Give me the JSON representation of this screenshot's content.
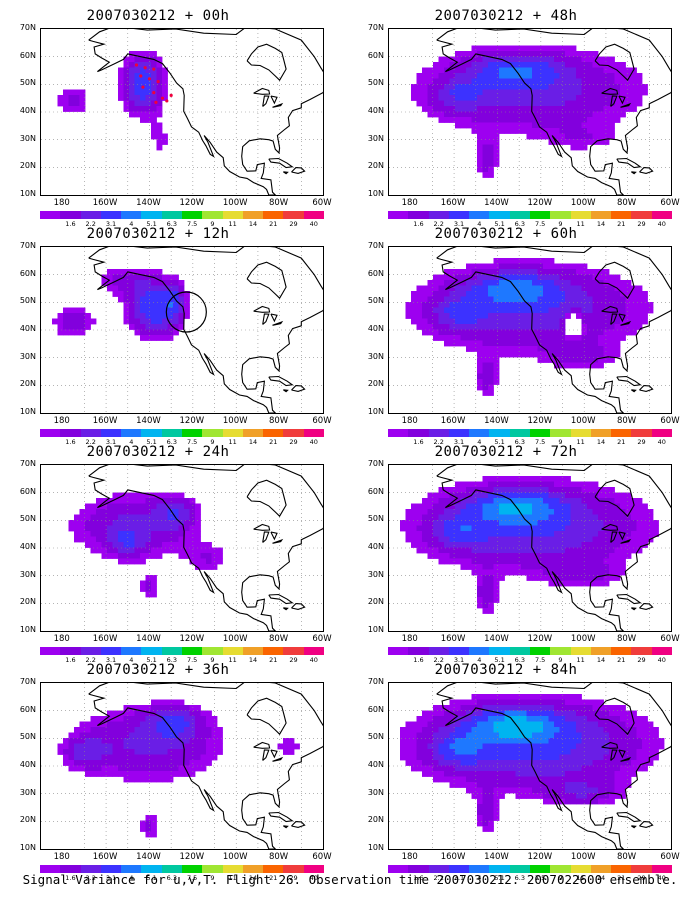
{
  "figure": {
    "caption": "Signal Variance for u,v,T. Flight 26. Observation time 2007030212. 2007022600 ensemble."
  },
  "axes": {
    "lat_labels": [
      "70N",
      "60N",
      "50N",
      "40N",
      "30N",
      "20N",
      "10N"
    ],
    "lon_labels": [
      "180",
      "160W",
      "140W",
      "120W",
      "100W",
      "80W",
      "60W"
    ]
  },
  "colorbar": {
    "labels": [
      "1.6",
      "2.2",
      "3.1",
      "4",
      "5.1",
      "6.3",
      "7.5",
      "9",
      "11",
      "14",
      "21",
      "29",
      "40"
    ],
    "colors": [
      "#9d00f0",
      "#8200dd",
      "#6a1ee6",
      "#3c32ff",
      "#1e78ff",
      "#00b4f0",
      "#00c8a0",
      "#00d200",
      "#a0e632",
      "#e6dc32",
      "#f0a028",
      "#fa6400",
      "#f03c3c",
      "#f00082"
    ]
  },
  "panels": [
    {
      "title": "2007030212 + 00h",
      "lead": 0
    },
    {
      "title": "2007030212 + 48h",
      "lead": 48
    },
    {
      "title": "2007030212 + 12h",
      "lead": 12
    },
    {
      "title": "2007030212 + 60h",
      "lead": 60
    },
    {
      "title": "2007030212 + 24h",
      "lead": 24
    },
    {
      "title": "2007030212 + 72h",
      "lead": 72
    },
    {
      "title": "2007030212 + 36h",
      "lead": 36
    },
    {
      "title": "2007030212 + 84h",
      "lead": 84
    }
  ]
}
